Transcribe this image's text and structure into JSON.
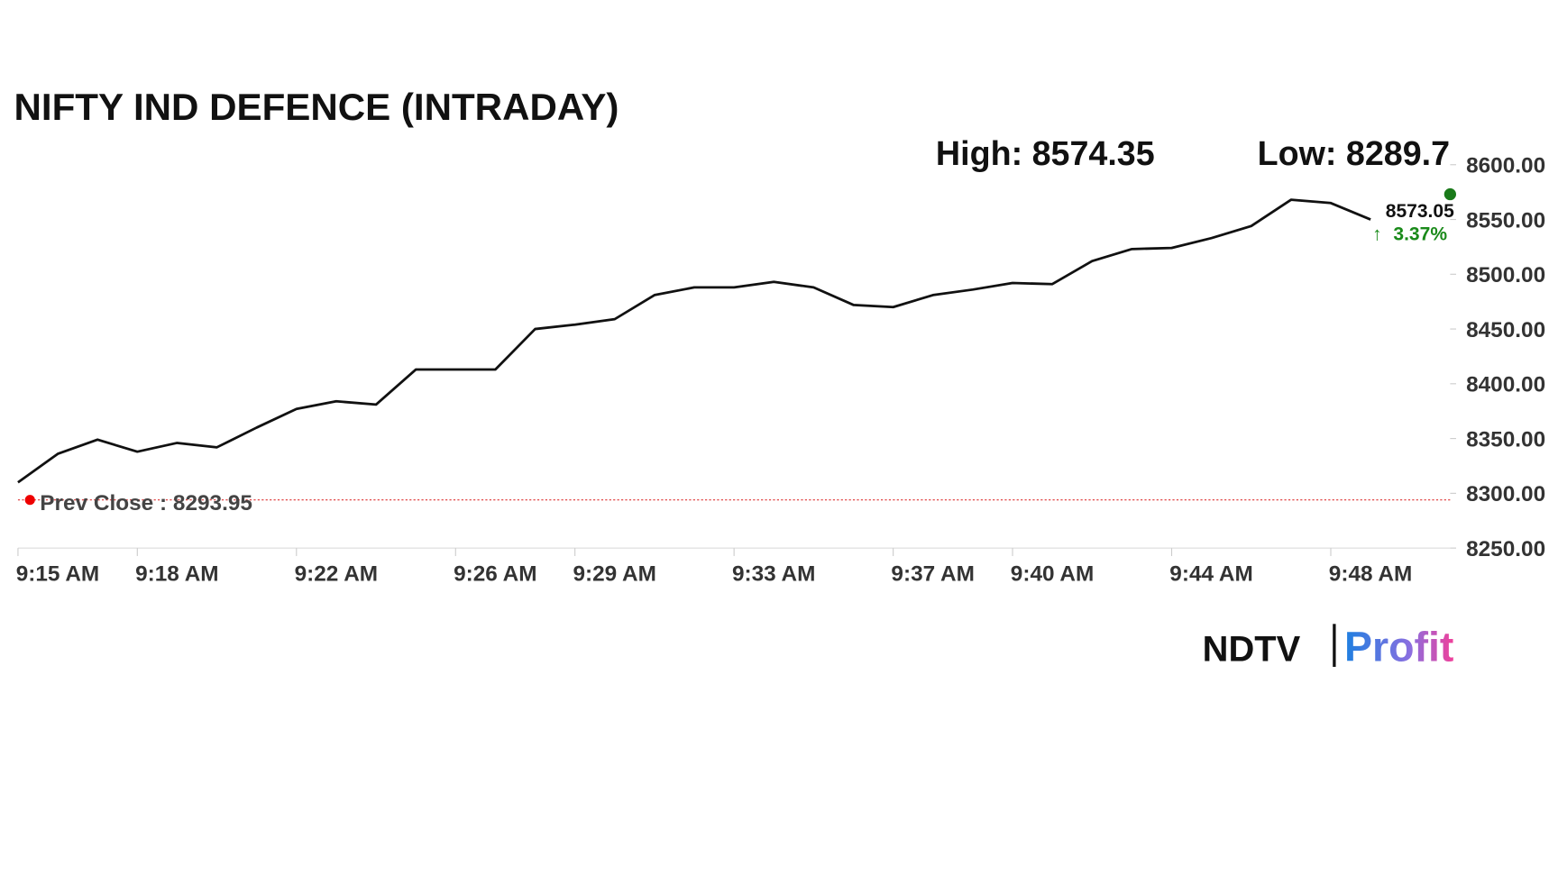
{
  "chart_data": {
    "type": "line",
    "title": "NIFTY IND DEFENCE (INTRADAY)",
    "high_caption": "High:",
    "high": 8574.35,
    "low_caption": "Low:",
    "low": 8289.7,
    "prev_close_caption": "Prev Close :",
    "prev_close": 8293.95,
    "last": 8573.05,
    "change_label": "3.37%",
    "x": [
      "9:15 AM",
      "9:16 AM",
      "9:17 AM",
      "9:18 AM",
      "9:19 AM",
      "9:20 AM",
      "9:21 AM",
      "9:22 AM",
      "9:23 AM",
      "9:24 AM",
      "9:25 AM",
      "9:26 AM",
      "9:27 AM",
      "9:28 AM",
      "9:29 AM",
      "9:30 AM",
      "9:31 AM",
      "9:32 AM",
      "9:33 AM",
      "9:34 AM",
      "9:35 AM",
      "9:36 AM",
      "9:37 AM",
      "9:38 AM",
      "9:39 AM",
      "9:40 AM",
      "9:41 AM",
      "9:42 AM",
      "9:43 AM",
      "9:44 AM",
      "9:45 AM",
      "9:46 AM",
      "9:47 AM",
      "9:48 AM",
      "9:49 AM"
    ],
    "series": [
      {
        "color": "#111111",
        "values": [
          8310,
          8336,
          8349,
          8338,
          8346,
          8342,
          8360,
          8377,
          8384,
          8381,
          8413,
          8413,
          8413,
          8450,
          8454,
          8459,
          8481,
          8488,
          8488,
          8493,
          8488,
          8472,
          8470,
          8481,
          8486,
          8492,
          8491,
          8512,
          8523,
          8524,
          8533,
          8544,
          8568,
          8565,
          8550
        ]
      }
    ],
    "xlim": [
      "9:15 AM",
      "9:51 AM"
    ],
    "xticks": [
      "9:15 AM",
      "9:18 AM",
      "9:22 AM",
      "9:26 AM",
      "9:29 AM",
      "9:33 AM",
      "9:37 AM",
      "9:40 AM",
      "9:44 AM",
      "9:48 AM"
    ],
    "ylim": [
      8250,
      8600
    ],
    "yticks": [
      {
        "value": 8250,
        "label": "8250.00"
      },
      {
        "value": 8300,
        "label": "8300.00"
      },
      {
        "value": 8350,
        "label": "8350.00"
      },
      {
        "value": 8400,
        "label": "8400.00"
      },
      {
        "value": 8450,
        "label": "8450.00"
      },
      {
        "value": 8500,
        "label": "8500.00"
      },
      {
        "value": 8550,
        "label": "8550.00"
      },
      {
        "value": 8600,
        "label": "8600.00"
      }
    ],
    "logo": {
      "left": "NDTV",
      "right": "Profit"
    }
  }
}
